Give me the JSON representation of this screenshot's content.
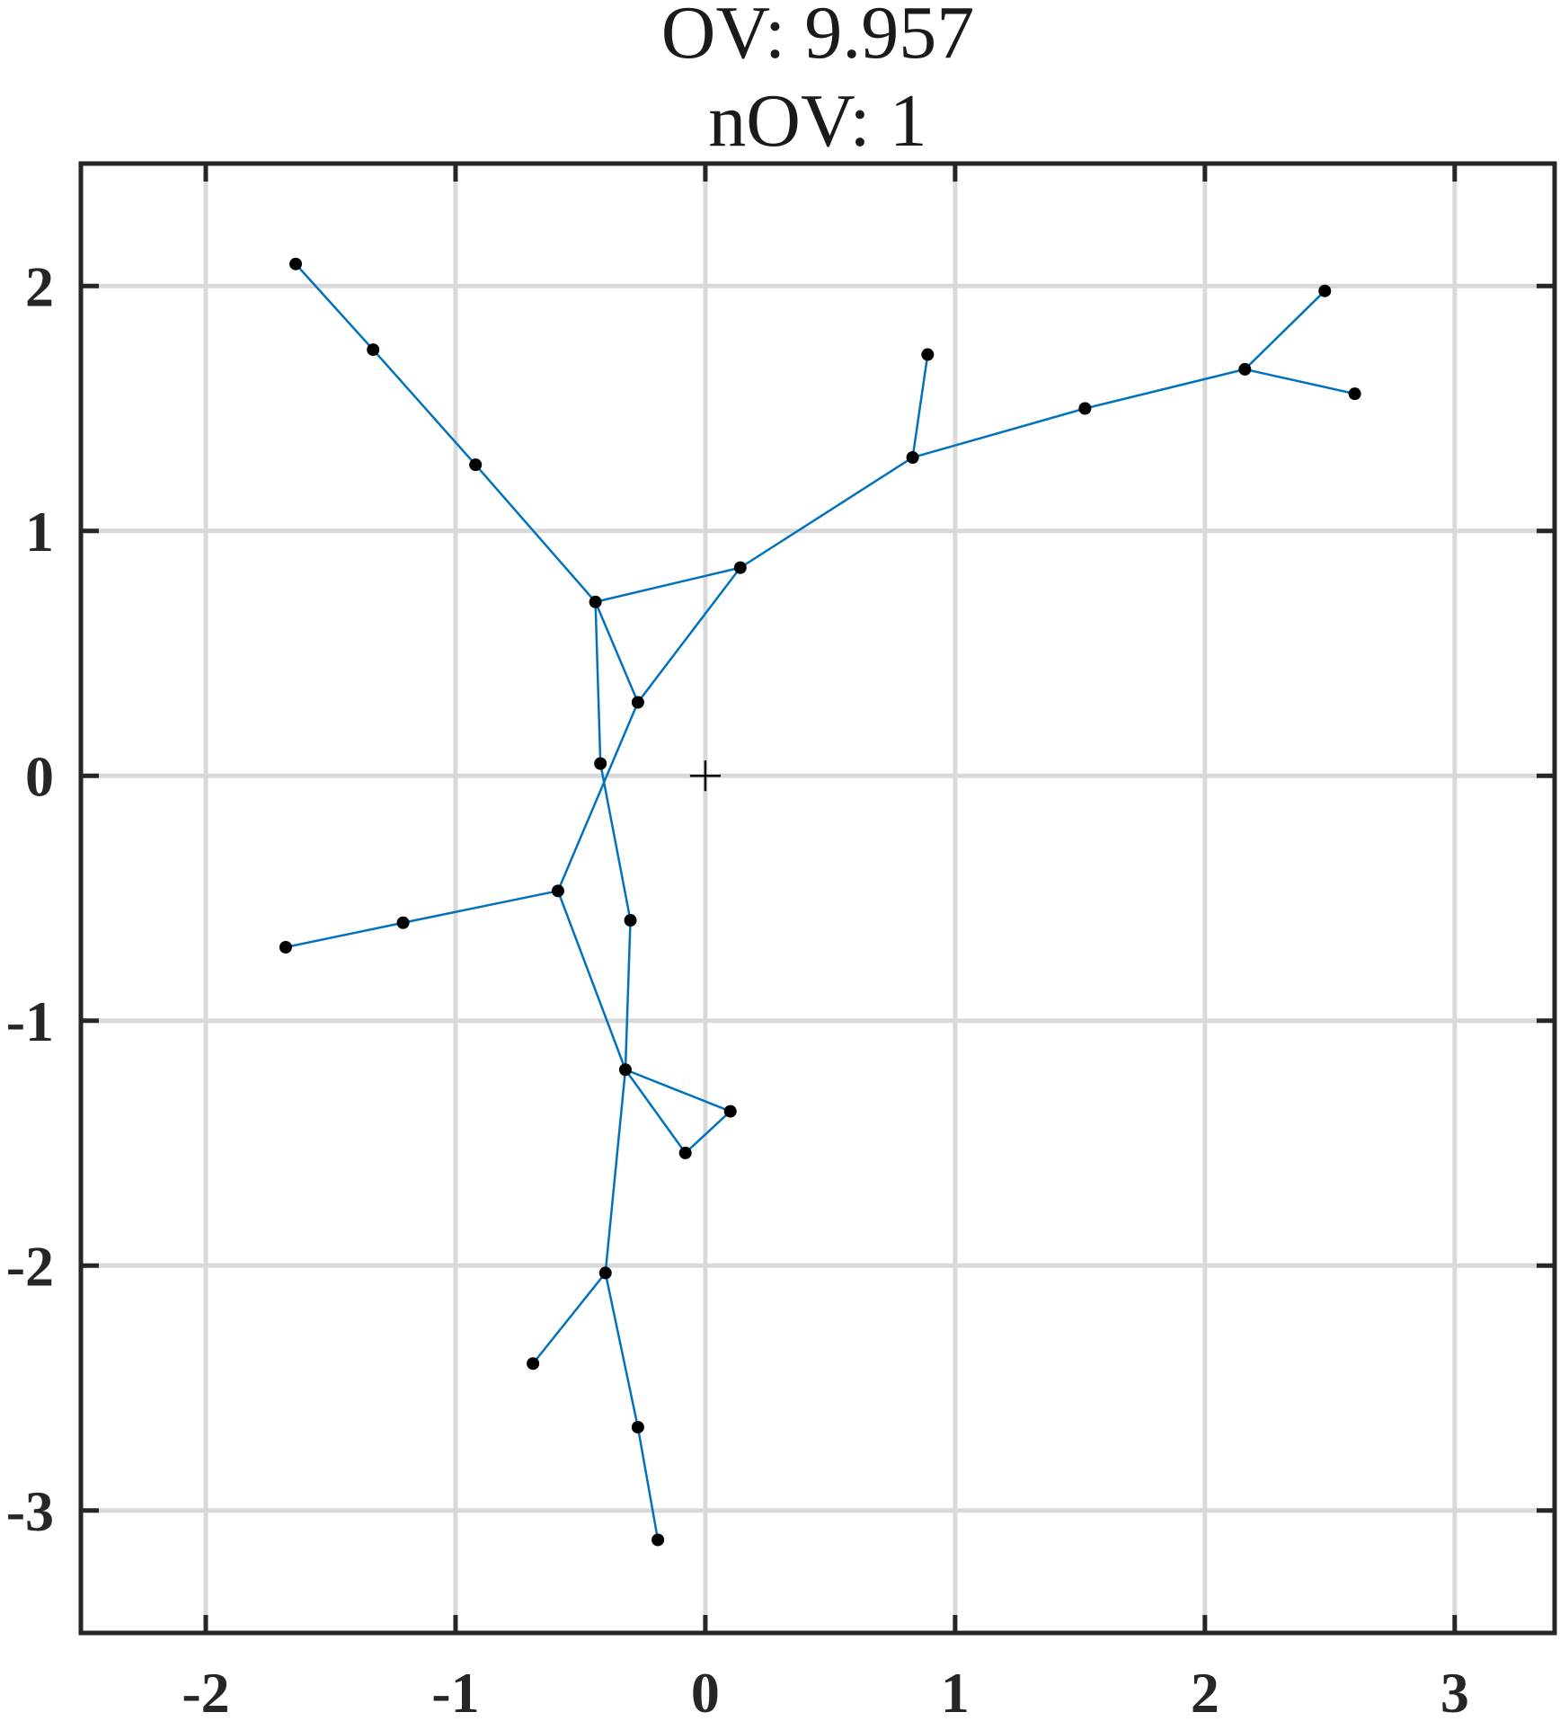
{
  "chart_data": {
    "type": "scatter",
    "title": [
      "OV: 9.957",
      "nOV: 1"
    ],
    "xlim": [
      -2.5,
      3.4
    ],
    "ylim": [
      -3.5,
      2.5
    ],
    "xticks": [
      -2,
      -1,
      0,
      1,
      2,
      3
    ],
    "yticks": [
      -3,
      -2,
      -1,
      0,
      1,
      2
    ],
    "xtick_labels": [
      "-2",
      "-1",
      "0",
      "1",
      "2",
      "3"
    ],
    "ytick_labels": [
      "-3",
      "-2",
      "-1",
      "0",
      "1",
      "2"
    ],
    "grid": true,
    "colors": {
      "edge": "#0072BD",
      "node": "#000000",
      "grid": "#d9d9d9",
      "axes": "#262626"
    },
    "origin_marker": {
      "x": 0,
      "y": 0,
      "symbol": "+"
    },
    "nodes": [
      {
        "x": -1.64,
        "y": 2.09
      },
      {
        "x": -1.33,
        "y": 1.74
      },
      {
        "x": -0.92,
        "y": 1.27
      },
      {
        "x": -0.44,
        "y": 0.71
      },
      {
        "x": 0.14,
        "y": 0.85
      },
      {
        "x": 0.83,
        "y": 1.3
      },
      {
        "x": 0.89,
        "y": 1.72
      },
      {
        "x": 1.52,
        "y": 1.5
      },
      {
        "x": 2.16,
        "y": 1.66
      },
      {
        "x": 2.48,
        "y": 1.98
      },
      {
        "x": 2.6,
        "y": 1.56
      },
      {
        "x": -0.27,
        "y": 0.3
      },
      {
        "x": -0.42,
        "y": 0.05
      },
      {
        "x": -0.59,
        "y": -0.47
      },
      {
        "x": -1.21,
        "y": -0.6
      },
      {
        "x": -1.68,
        "y": -0.7
      },
      {
        "x": -0.3,
        "y": -0.59
      },
      {
        "x": -0.32,
        "y": -1.2
      },
      {
        "x": 0.1,
        "y": -1.37
      },
      {
        "x": -0.08,
        "y": -1.54
      },
      {
        "x": -0.4,
        "y": -2.03
      },
      {
        "x": -0.69,
        "y": -2.4
      },
      {
        "x": -0.27,
        "y": -2.66
      },
      {
        "x": -0.19,
        "y": -3.12
      }
    ],
    "edges": [
      [
        0,
        1
      ],
      [
        1,
        2
      ],
      [
        2,
        3
      ],
      [
        3,
        4
      ],
      [
        4,
        5
      ],
      [
        5,
        6
      ],
      [
        5,
        7
      ],
      [
        7,
        8
      ],
      [
        8,
        9
      ],
      [
        8,
        10
      ],
      [
        3,
        11
      ],
      [
        4,
        11
      ],
      [
        11,
        13
      ],
      [
        3,
        12
      ],
      [
        12,
        16
      ],
      [
        16,
        17
      ],
      [
        13,
        14
      ],
      [
        14,
        15
      ],
      [
        13,
        17
      ],
      [
        17,
        18
      ],
      [
        17,
        19
      ],
      [
        19,
        18
      ],
      [
        17,
        20
      ],
      [
        20,
        21
      ],
      [
        20,
        22
      ],
      [
        22,
        23
      ]
    ]
  }
}
